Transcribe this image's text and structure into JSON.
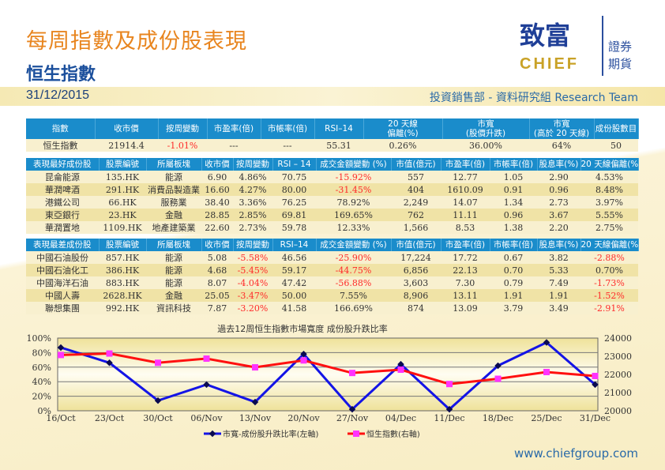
{
  "header": {
    "title": "每周指數及成份股表現",
    "subtitle": "恒生指數",
    "date": "31/12/2015",
    "team": "投資銷售部 - 資料研究組 Research Team"
  },
  "logo": {
    "zh": "致富",
    "en": "CHIEF",
    "r1": "證券",
    "r2": "期貨"
  },
  "index_table": {
    "headers": [
      "指數",
      "收市價",
      "按周變動",
      "市盈率(倍)",
      "市帳率(倍)",
      "RSI–14",
      "20 天線\n偏離(%)",
      "市寬\n(股價升跌)",
      "市寬\n(高於 20 天線)",
      "成份股數目"
    ],
    "row": [
      "恒生指數",
      "21914.4",
      "-1.01%",
      "---",
      "---",
      "55.31",
      "0.26%",
      "36.00%",
      "64%",
      "50"
    ]
  },
  "best_table": {
    "headers": [
      "表現最好成份股",
      "股票編號",
      "所屬板塊",
      "收市價",
      "按周變動",
      "RSI – 14",
      "成交金額變動 (%)",
      "市值(億元)",
      "市盈率(倍)",
      "市帳率(倍)",
      "股息率(%)",
      "20 天線偏離(%)"
    ],
    "rows": [
      [
        "昆侖能源",
        "135.HK",
        "能源",
        "6.90",
        "4.86%",
        "70.75",
        "-15.92%",
        "557",
        "12.77",
        "1.05",
        "2.90",
        "4.53%"
      ],
      [
        "華潤啤酒",
        "291.HK",
        "消費品製造業",
        "16.60",
        "4.27%",
        "80.00",
        "-31.45%",
        "404",
        "1610.09",
        "0.91",
        "0.96",
        "8.48%"
      ],
      [
        "港鐵公司",
        "66.HK",
        "服務業",
        "38.40",
        "3.36%",
        "76.25",
        "78.92%",
        "2,249",
        "14.07",
        "1.34",
        "2.73",
        "3.97%"
      ],
      [
        "東亞銀行",
        "23.HK",
        "金融",
        "28.85",
        "2.85%",
        "69.81",
        "169.65%",
        "762",
        "11.11",
        "0.96",
        "3.67",
        "5.55%"
      ],
      [
        "華潤置地",
        "1109.HK",
        "地產建築業",
        "22.60",
        "2.73%",
        "59.78",
        "12.33%",
        "1,566",
        "8.53",
        "1.38",
        "2.20",
        "2.75%"
      ]
    ]
  },
  "worst_table": {
    "headers": [
      "表現最差成份股",
      "股票編號",
      "所屬板塊",
      "收市價",
      "按周變動",
      "RSI–14",
      "成交金額變動 (%)",
      "市值(億元)",
      "市盈率(倍)",
      "市帳率(倍)",
      "股息率(%)",
      "20 天線偏離(%)"
    ],
    "rows": [
      [
        "中國石油股份",
        "857.HK",
        "能源",
        "5.08",
        "-5.58%",
        "46.56",
        "-25.90%",
        "17,224",
        "17.72",
        "0.67",
        "3.82",
        "-2.88%"
      ],
      [
        "中國石油化工",
        "386.HK",
        "能源",
        "4.68",
        "-5.45%",
        "59.17",
        "-44.75%",
        "6,856",
        "22.13",
        "0.70",
        "5.33",
        "0.70%"
      ],
      [
        "中國海洋石油",
        "883.HK",
        "能源",
        "8.07",
        "-4.04%",
        "47.42",
        "-56.88%",
        "3,603",
        "7.30",
        "0.79",
        "7.49",
        "-1.73%"
      ],
      [
        "中國人壽",
        "2628.HK",
        "金融",
        "25.05",
        "-3.47%",
        "50.00",
        "7.55%",
        "8,906",
        "13.11",
        "1.91",
        "1.91",
        "-1.52%"
      ],
      [
        "聯想集團",
        "992.HK",
        "資訊科技",
        "7.87",
        "-3.20%",
        "41.58",
        "166.69%",
        "874",
        "13.09",
        "3.79",
        "3.49",
        "-2.91%"
      ]
    ]
  },
  "chart_data": {
    "type": "line",
    "title": "過去12周恒生指數市場寬度 成份股升跌比率",
    "categories": [
      "16/Oct",
      "23/Oct",
      "30/Oct",
      "06/Nov",
      "13/Nov",
      "20/Nov",
      "27/Nov",
      "04/Dec",
      "11/Dec",
      "18/Dec",
      "25/Dec",
      "31/Dec"
    ],
    "y_left": {
      "range": [
        0,
        100
      ],
      "ticks": [
        "0%",
        "20%",
        "40%",
        "60%",
        "80%",
        "100%"
      ]
    },
    "y_right": {
      "range": [
        20000,
        24000
      ],
      "ticks": [
        "20000",
        "21000",
        "22000",
        "23000",
        "24000"
      ]
    },
    "grid": true,
    "legend": "bottom",
    "series": [
      {
        "name": "市寬-成份股升跌比率(左軸)",
        "axis": "left",
        "color": "#1414e6",
        "values": [
          87,
          66,
          14,
          36,
          12,
          78,
          2,
          64,
          2,
          62,
          94,
          36
        ]
      },
      {
        "name": "恒生指數(右軸)",
        "axis": "right",
        "color": "#ff1010",
        "marker_color": "#ff33ff",
        "values": [
          23070,
          23150,
          22640,
          22870,
          22390,
          22770,
          22080,
          22260,
          21470,
          21760,
          22130,
          21914
        ]
      }
    ]
  },
  "footer": "www.chiefgroup.com"
}
